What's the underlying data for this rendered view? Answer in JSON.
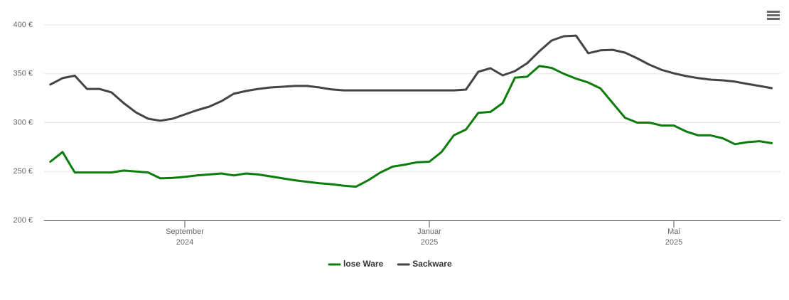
{
  "chart_data": {
    "type": "line",
    "categories": [
      null,
      null,
      null,
      null,
      null,
      null,
      null,
      null,
      null,
      null,
      null,
      "September 2024",
      null,
      null,
      null,
      null,
      null,
      null,
      null,
      null,
      null,
      null,
      null,
      null,
      null,
      null,
      null,
      null,
      null,
      null,
      null,
      "Januar 2025",
      null,
      null,
      null,
      null,
      null,
      null,
      null,
      null,
      null,
      null,
      null,
      null,
      null,
      null,
      null,
      null,
      null,
      null,
      null,
      "Mai 2025",
      null,
      null,
      null,
      null,
      null,
      null,
      null,
      null
    ],
    "series": [
      {
        "name": "lose Ware",
        "color": "#0c7d0c",
        "values": [
          260,
          270,
          249,
          249,
          249,
          249,
          251,
          250,
          249,
          243,
          243.5,
          244.5,
          246,
          247,
          248,
          246,
          248,
          247,
          245,
          243,
          241,
          239.5,
          238,
          237,
          235.5,
          234.5,
          241,
          249,
          255,
          257,
          259.5,
          260,
          270,
          287,
          293,
          310,
          311,
          320,
          346,
          347,
          358,
          356,
          350,
          345,
          341,
          335,
          320,
          305,
          300,
          300,
          297,
          297,
          291,
          287,
          287,
          284,
          278,
          280,
          281,
          279
        ]
      },
      {
        "name": "Sackware",
        "color": "#434348",
        "values": [
          339,
          345.5,
          348,
          334.5,
          334.5,
          331,
          320,
          310.5,
          304,
          302,
          304,
          308.4,
          312.7,
          316.4,
          322,
          329.5,
          332.4,
          334.5,
          336,
          336.7,
          337.5,
          337.5,
          336,
          334,
          333,
          333,
          333,
          333,
          333,
          333,
          333,
          333,
          333,
          333,
          333.8,
          352,
          355.6,
          348.4,
          352.7,
          360.7,
          373,
          384,
          388.4,
          389,
          371,
          374,
          374.5,
          371.6,
          365.8,
          359.3,
          354,
          350.5,
          347.6,
          345.5,
          344,
          343.3,
          342,
          339.6,
          337.5,
          335.3
        ]
      }
    ],
    "ylim": [
      200,
      400
    ],
    "yticks": [
      {
        "value": 200,
        "label": "200 €"
      },
      {
        "value": 250,
        "label": "250 €"
      },
      {
        "value": 300,
        "label": "300 €"
      },
      {
        "value": 350,
        "label": "350 €"
      },
      {
        "value": 400,
        "label": "400 €"
      }
    ],
    "grid": true,
    "legend": "bottom"
  }
}
